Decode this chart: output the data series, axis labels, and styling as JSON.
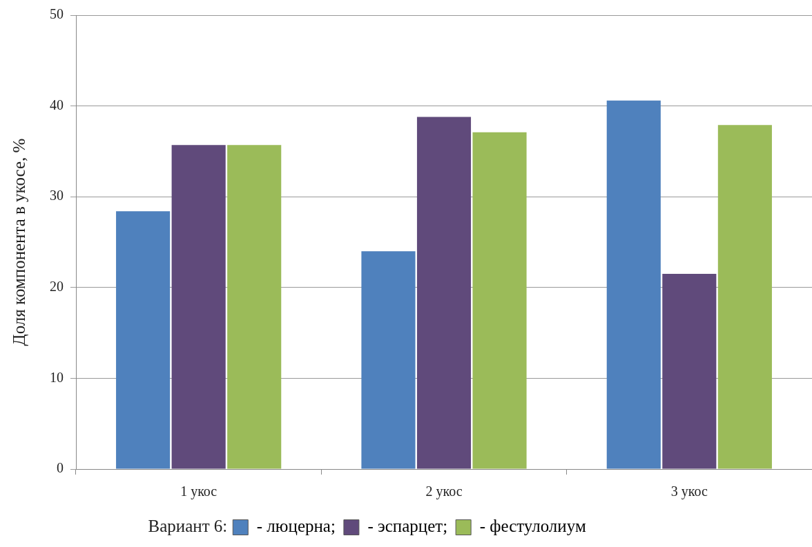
{
  "chart_data": {
    "type": "bar",
    "ylabel": "Доля компонента в укосе, %",
    "legend_title": "Вариант 6:",
    "categories": [
      "1 укос",
      "2 укос",
      "3 укос"
    ],
    "series": [
      {
        "name": "- люцерна;",
        "color": "#4f81bd",
        "values": [
          28.4,
          24.0,
          40.6
        ]
      },
      {
        "name": "- эспарцет;",
        "color": "#604a7b",
        "values": [
          35.7,
          38.8,
          21.5
        ]
      },
      {
        "name": "- фестулолиум",
        "color": "#9bbb59",
        "values": [
          35.7,
          37.1,
          37.9
        ]
      }
    ],
    "ylim": [
      0,
      50
    ],
    "yticks": [
      0,
      10,
      20,
      30,
      40,
      50
    ],
    "grid": "y",
    "legend": "bottom"
  }
}
